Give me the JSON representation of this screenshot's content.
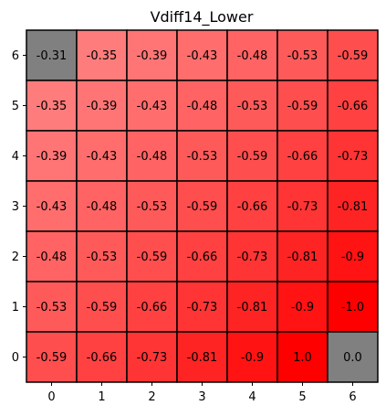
{
  "chart_data": {
    "type": "heatmap",
    "title": "Vdiff14_Lower",
    "xlabel": "",
    "ylabel": "",
    "x_ticks": [
      "0",
      "1",
      "2",
      "3",
      "4",
      "5",
      "6"
    ],
    "y_ticks": [
      "0",
      "1",
      "2",
      "3",
      "4",
      "5",
      "6"
    ],
    "xlim": [
      -0.5,
      6.5
    ],
    "ylim": [
      -0.5,
      6.5
    ],
    "grid": false,
    "colormap": {
      "low": "#ffffff",
      "high": "#ff0000",
      "masked": "#808080",
      "border": "#000000"
    },
    "rows_top_to_bottom": [
      {
        "y": "6",
        "values": [
          -0.31,
          -0.35,
          -0.39,
          -0.43,
          -0.48,
          -0.53,
          -0.59
        ],
        "labels": [
          "-0.31",
          "-0.35",
          "-0.39",
          "-0.43",
          "-0.48",
          "-0.53",
          "-0.59"
        ],
        "masked": [
          true,
          false,
          false,
          false,
          false,
          false,
          false
        ]
      },
      {
        "y": "5",
        "values": [
          -0.35,
          -0.39,
          -0.43,
          -0.48,
          -0.53,
          -0.59,
          -0.66
        ],
        "labels": [
          "-0.35",
          "-0.39",
          "-0.43",
          "-0.48",
          "-0.53",
          "-0.59",
          "-0.66"
        ],
        "masked": [
          false,
          false,
          false,
          false,
          false,
          false,
          false
        ]
      },
      {
        "y": "4",
        "values": [
          -0.39,
          -0.43,
          -0.48,
          -0.53,
          -0.59,
          -0.66,
          -0.73
        ],
        "labels": [
          "-0.39",
          "-0.43",
          "-0.48",
          "-0.53",
          "-0.59",
          "-0.66",
          "-0.73"
        ],
        "masked": [
          false,
          false,
          false,
          false,
          false,
          false,
          false
        ]
      },
      {
        "y": "3",
        "values": [
          -0.43,
          -0.48,
          -0.53,
          -0.59,
          -0.66,
          -0.73,
          -0.81
        ],
        "labels": [
          "-0.43",
          "-0.48",
          "-0.53",
          "-0.59",
          "-0.66",
          "-0.73",
          "-0.81"
        ],
        "masked": [
          false,
          false,
          false,
          false,
          false,
          false,
          false
        ]
      },
      {
        "y": "2",
        "values": [
          -0.48,
          -0.53,
          -0.59,
          -0.66,
          -0.73,
          -0.81,
          -0.9
        ],
        "labels": [
          "-0.48",
          "-0.53",
          "-0.59",
          "-0.66",
          "-0.73",
          "-0.81",
          "-0.9"
        ],
        "masked": [
          false,
          false,
          false,
          false,
          false,
          false,
          false
        ]
      },
      {
        "y": "1",
        "values": [
          -0.53,
          -0.59,
          -0.66,
          -0.73,
          -0.81,
          -0.9,
          -1.0
        ],
        "labels": [
          "-0.53",
          "-0.59",
          "-0.66",
          "-0.73",
          "-0.81",
          "-0.9",
          "-1.0"
        ],
        "masked": [
          false,
          false,
          false,
          false,
          false,
          false,
          false
        ]
      },
      {
        "y": "0",
        "values": [
          -0.59,
          -0.66,
          -0.73,
          -0.81,
          -0.9,
          1.0,
          0.0
        ],
        "labels": [
          "-0.59",
          "-0.66",
          "-0.73",
          "-0.81",
          "-0.9",
          "1.0",
          "0.0"
        ],
        "masked": [
          false,
          false,
          false,
          false,
          false,
          false,
          true
        ]
      }
    ]
  }
}
